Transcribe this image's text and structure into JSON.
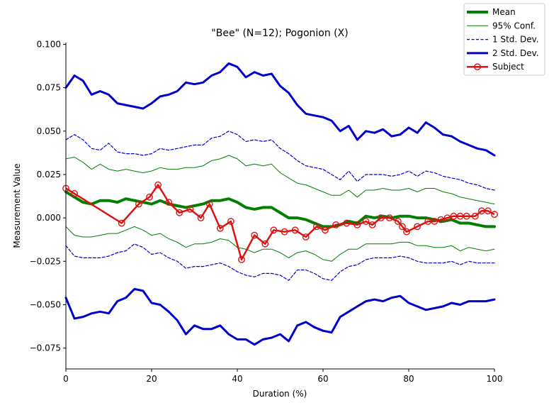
{
  "chart_data": {
    "type": "line",
    "title": "\"Bee\" (N=12); Pogonion (X)",
    "xlabel": "Duration (%)",
    "ylabel": "Measurement Value",
    "xlim": [
      0,
      100
    ],
    "ylim": [
      -0.087,
      0.101
    ],
    "xticks": [
      0,
      20,
      40,
      60,
      80,
      100
    ],
    "xtick_labels": [
      "0",
      "20",
      "40",
      "60",
      "80",
      "100"
    ],
    "yticks": [
      -0.075,
      -0.05,
      -0.025,
      0.0,
      0.025,
      0.05,
      0.075,
      0.1
    ],
    "ytick_labels": [
      "−0.075",
      "−0.050",
      "−0.025",
      "0.000",
      "0.025",
      "0.050",
      "0.075",
      "0.100"
    ],
    "grid": false,
    "legend_position": "top-right (outside plot)",
    "x": [
      0,
      2,
      4,
      6,
      8,
      10,
      12,
      14,
      16,
      18,
      20,
      22,
      24,
      26,
      28,
      30,
      32,
      34,
      36,
      38,
      40,
      42,
      44,
      46,
      48,
      50,
      52,
      54,
      56,
      58,
      60,
      62,
      64,
      66,
      68,
      70,
      72,
      74,
      76,
      78,
      80,
      82,
      84,
      86,
      88,
      90,
      92,
      94,
      96,
      98,
      100
    ],
    "series": [
      {
        "name": "Mean",
        "color": "#008000",
        "style": "solid",
        "width": 4,
        "values": [
          0.015,
          0.012,
          0.009,
          0.008,
          0.01,
          0.01,
          0.009,
          0.011,
          0.01,
          0.009,
          0.008,
          0.01,
          0.008,
          0.007,
          0.006,
          0.007,
          0.008,
          0.01,
          0.01,
          0.011,
          0.009,
          0.006,
          0.005,
          0.006,
          0.006,
          0.003,
          0.0,
          0.0,
          -0.001,
          -0.003,
          -0.005,
          -0.005,
          -0.004,
          -0.002,
          -0.003,
          0.001,
          0.0,
          0.001,
          0.0,
          0.001,
          0.001,
          0.0,
          0.0,
          -0.001,
          -0.002,
          -0.001,
          -0.003,
          -0.003,
          -0.004,
          -0.005,
          -0.005
        ]
      },
      {
        "name": "95% Conf.",
        "color": "#008000",
        "style": "solid",
        "width": 1,
        "values": [
          0.034,
          0.035,
          0.032,
          0.028,
          0.031,
          0.028,
          0.027,
          0.028,
          0.027,
          0.026,
          0.027,
          0.029,
          0.028,
          0.028,
          0.029,
          0.029,
          0.03,
          0.033,
          0.034,
          0.036,
          0.034,
          0.03,
          0.031,
          0.03,
          0.031,
          0.026,
          0.023,
          0.02,
          0.019,
          0.017,
          0.015,
          0.013,
          0.013,
          0.016,
          0.012,
          0.016,
          0.016,
          0.017,
          0.016,
          0.016,
          0.017,
          0.015,
          0.017,
          0.017,
          0.015,
          0.014,
          0.012,
          0.011,
          0.01,
          0.009,
          0.008
        ]
      },
      {
        "name": "",
        "color": "#008000",
        "style": "solid",
        "width": 1,
        "values": [
          -0.005,
          -0.01,
          -0.011,
          -0.011,
          -0.01,
          -0.009,
          -0.009,
          -0.007,
          -0.005,
          -0.007,
          -0.01,
          -0.009,
          -0.012,
          -0.014,
          -0.017,
          -0.015,
          -0.015,
          -0.014,
          -0.012,
          -0.013,
          -0.017,
          -0.018,
          -0.02,
          -0.018,
          -0.018,
          -0.02,
          -0.023,
          -0.02,
          -0.019,
          -0.021,
          -0.024,
          -0.025,
          -0.021,
          -0.018,
          -0.018,
          -0.015,
          -0.015,
          -0.015,
          -0.015,
          -0.014,
          -0.014,
          -0.016,
          -0.016,
          -0.017,
          -0.017,
          -0.016,
          -0.019,
          -0.017,
          -0.018,
          -0.019,
          -0.018
        ]
      },
      {
        "name": "1 Std. Dev.",
        "color": "#0000cc",
        "style": "dashed",
        "width": 1.2,
        "values": [
          0.045,
          0.048,
          0.045,
          0.04,
          0.039,
          0.043,
          0.038,
          0.037,
          0.037,
          0.036,
          0.037,
          0.04,
          0.039,
          0.04,
          0.041,
          0.042,
          0.042,
          0.046,
          0.047,
          0.05,
          0.048,
          0.044,
          0.045,
          0.044,
          0.045,
          0.04,
          0.037,
          0.033,
          0.03,
          0.029,
          0.028,
          0.025,
          0.022,
          0.027,
          0.021,
          0.025,
          0.025,
          0.025,
          0.024,
          0.025,
          0.027,
          0.024,
          0.027,
          0.026,
          0.024,
          0.023,
          0.022,
          0.02,
          0.019,
          0.017,
          0.016
        ]
      },
      {
        "name": "",
        "color": "#0000cc",
        "style": "dashed",
        "width": 1.2,
        "values": [
          -0.016,
          -0.022,
          -0.023,
          -0.023,
          -0.023,
          -0.022,
          -0.02,
          -0.019,
          -0.015,
          -0.017,
          -0.021,
          -0.02,
          -0.023,
          -0.025,
          -0.029,
          -0.028,
          -0.028,
          -0.027,
          -0.026,
          -0.028,
          -0.031,
          -0.033,
          -0.034,
          -0.032,
          -0.032,
          -0.033,
          -0.036,
          -0.03,
          -0.03,
          -0.032,
          -0.035,
          -0.036,
          -0.031,
          -0.028,
          -0.027,
          -0.024,
          -0.023,
          -0.023,
          -0.023,
          -0.022,
          -0.023,
          -0.025,
          -0.026,
          -0.026,
          -0.026,
          -0.025,
          -0.027,
          -0.025,
          -0.026,
          -0.026,
          -0.026
        ]
      },
      {
        "name": "2 Std. Dev.",
        "color": "#0000cc",
        "style": "solid",
        "width": 3,
        "values": [
          0.075,
          0.082,
          0.079,
          0.071,
          0.073,
          0.071,
          0.066,
          0.065,
          0.064,
          0.063,
          0.066,
          0.07,
          0.071,
          0.073,
          0.078,
          0.077,
          0.078,
          0.082,
          0.084,
          0.089,
          0.087,
          0.081,
          0.084,
          0.082,
          0.083,
          0.076,
          0.072,
          0.065,
          0.06,
          0.059,
          0.058,
          0.056,
          0.05,
          0.053,
          0.045,
          0.05,
          0.049,
          0.051,
          0.047,
          0.048,
          0.052,
          0.049,
          0.055,
          0.052,
          0.048,
          0.047,
          0.044,
          0.042,
          0.04,
          0.039,
          0.036
        ]
      },
      {
        "name": "",
        "color": "#0000cc",
        "style": "solid",
        "width": 3,
        "values": [
          -0.046,
          -0.058,
          -0.057,
          -0.055,
          -0.054,
          -0.055,
          -0.048,
          -0.046,
          -0.041,
          -0.042,
          -0.049,
          -0.05,
          -0.054,
          -0.059,
          -0.067,
          -0.062,
          -0.064,
          -0.064,
          -0.062,
          -0.067,
          -0.07,
          -0.07,
          -0.073,
          -0.07,
          -0.069,
          -0.067,
          -0.071,
          -0.062,
          -0.06,
          -0.063,
          -0.065,
          -0.066,
          -0.057,
          -0.054,
          -0.051,
          -0.048,
          -0.047,
          -0.048,
          -0.046,
          -0.045,
          -0.049,
          -0.051,
          -0.053,
          -0.052,
          -0.051,
          -0.049,
          -0.05,
          -0.048,
          -0.048,
          -0.048,
          -0.047
        ]
      }
    ],
    "subject": {
      "name": "Subject",
      "color": "#dd1111",
      "x": [
        0,
        2,
        13,
        17,
        19.5,
        21.5,
        24,
        26.5,
        29,
        31.5,
        33.5,
        36,
        38.5,
        41,
        44,
        46.5,
        48.5,
        51,
        53.5,
        56,
        58.5,
        60.5,
        63,
        65.5,
        68,
        70,
        71.5,
        73.5,
        75.5,
        77.5,
        78.5,
        79.5,
        82,
        84.5,
        86,
        87.5,
        89,
        90.5,
        92,
        93.5,
        95.5,
        97,
        98.5,
        100
      ],
      "values": [
        0.017,
        0.014,
        -0.003,
        0.008,
        0.012,
        0.019,
        0.009,
        0.003,
        0.005,
        0.0,
        0.008,
        -0.006,
        -0.002,
        -0.024,
        -0.01,
        -0.015,
        -0.007,
        -0.008,
        -0.007,
        -0.011,
        -0.005,
        -0.007,
        -0.004,
        -0.003,
        -0.004,
        -0.002,
        -0.004,
        0.0,
        0.0,
        -0.002,
        -0.005,
        -0.008,
        -0.005,
        -0.002,
        -0.002,
        -0.001,
        0.0,
        0.001,
        0.001,
        0.001,
        0.001,
        0.004,
        0.004,
        0.002
      ]
    }
  }
}
